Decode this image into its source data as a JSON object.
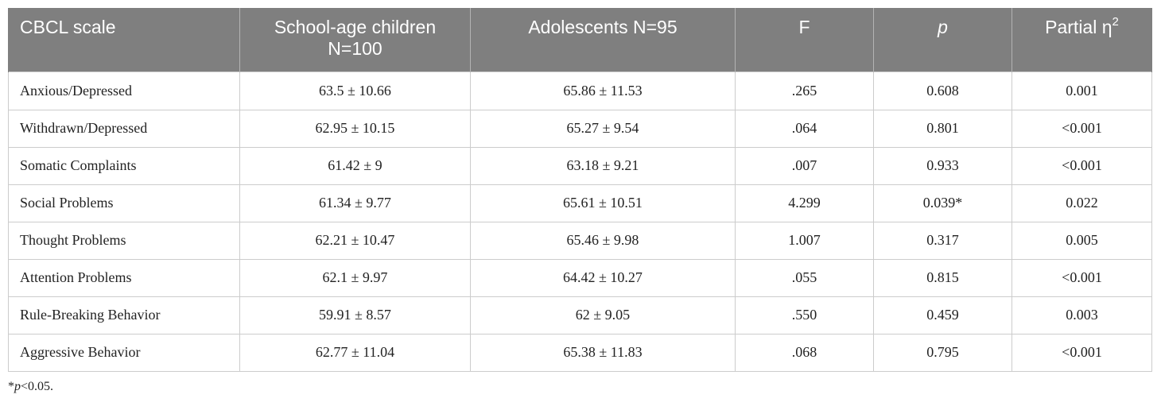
{
  "table": {
    "headers": [
      {
        "text": "CBCL scale"
      },
      {
        "text": "School-age children N=100"
      },
      {
        "text": "Adolescents N=95"
      },
      {
        "text": "F"
      },
      {
        "text": "p"
      },
      {
        "text": "Partial η",
        "sup": "2"
      }
    ],
    "rows": [
      {
        "scale": "Anxious/Depressed",
        "school_age": "63.5 ± 10.66",
        "adolescents": "65.86 ± 11.53",
        "F": ".265",
        "p": "0.608",
        "partial_eta2": "0.001"
      },
      {
        "scale": "Withdrawn/Depressed",
        "school_age": "62.95 ± 10.15",
        "adolescents": "65.27 ± 9.54",
        "F": ".064",
        "p": "0.801",
        "partial_eta2": "<0.001"
      },
      {
        "scale": "Somatic Complaints",
        "school_age": "61.42 ± 9",
        "adolescents": "63.18 ± 9.21",
        "F": ".007",
        "p": "0.933",
        "partial_eta2": "<0.001"
      },
      {
        "scale": "Social Problems",
        "school_age": "61.34 ± 9.77",
        "adolescents": "65.61 ± 10.51",
        "F": "4.299",
        "p": "0.039*",
        "partial_eta2": "0.022"
      },
      {
        "scale": "Thought Problems",
        "school_age": "62.21 ± 10.47",
        "adolescents": "65.46 ± 9.98",
        "F": "1.007",
        "p": "0.317",
        "partial_eta2": "0.005"
      },
      {
        "scale": "Attention Problems",
        "school_age": "62.1 ± 9.97",
        "adolescents": "64.42 ± 10.27",
        "F": ".055",
        "p": "0.815",
        "partial_eta2": "<0.001"
      },
      {
        "scale": "Rule-Breaking Behavior",
        "school_age": "59.91 ± 8.57",
        "adolescents": "62 ± 9.05",
        "F": ".550",
        "p": "0.459",
        "partial_eta2": "0.003"
      },
      {
        "scale": "Aggressive Behavior",
        "school_age": "62.77 ± 11.04",
        "adolescents": "65.38 ± 11.83",
        "F": ".068",
        "p": "0.795",
        "partial_eta2": "<0.001"
      }
    ]
  },
  "footnote": {
    "star": "*",
    "p": "p",
    "rest": "<0.05."
  },
  "colors": {
    "header_bg": "#7f7f7f",
    "header_text": "#ffffff",
    "grid": "#cccccc"
  }
}
